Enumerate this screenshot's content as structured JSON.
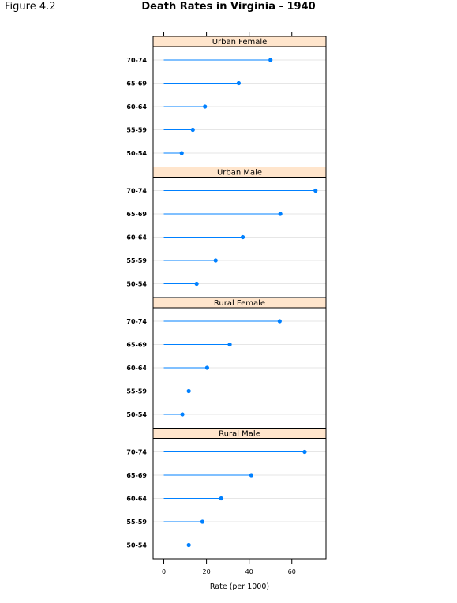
{
  "figure_label": "Figure 4.2",
  "chart_data": {
    "type": "dotplot",
    "title": "Death Rates in Virginia - 1940",
    "xlabel": "Rate (per 1000)",
    "ylabel": "",
    "xlim": [
      -5,
      76
    ],
    "x_ticks": [
      0,
      20,
      40,
      60
    ],
    "categories": [
      "50-54",
      "55-59",
      "60-64",
      "65-69",
      "70-74"
    ],
    "panels": [
      {
        "name": "Urban Female",
        "values": [
          8.4,
          13.6,
          19.3,
          35.1,
          50.0
        ]
      },
      {
        "name": "Urban Male",
        "values": [
          15.4,
          24.3,
          37.0,
          54.6,
          71.1
        ]
      },
      {
        "name": "Rural Female",
        "values": [
          8.7,
          11.7,
          20.3,
          30.9,
          54.3
        ]
      },
      {
        "name": "Rural Male",
        "values": [
          11.7,
          18.1,
          26.9,
          41.0,
          66.0
        ]
      }
    ],
    "colors": {
      "point": "#0080ff",
      "strip_bg": "#ffe5cc",
      "grid": "#e6e6e6",
      "frame": "#000000"
    }
  }
}
